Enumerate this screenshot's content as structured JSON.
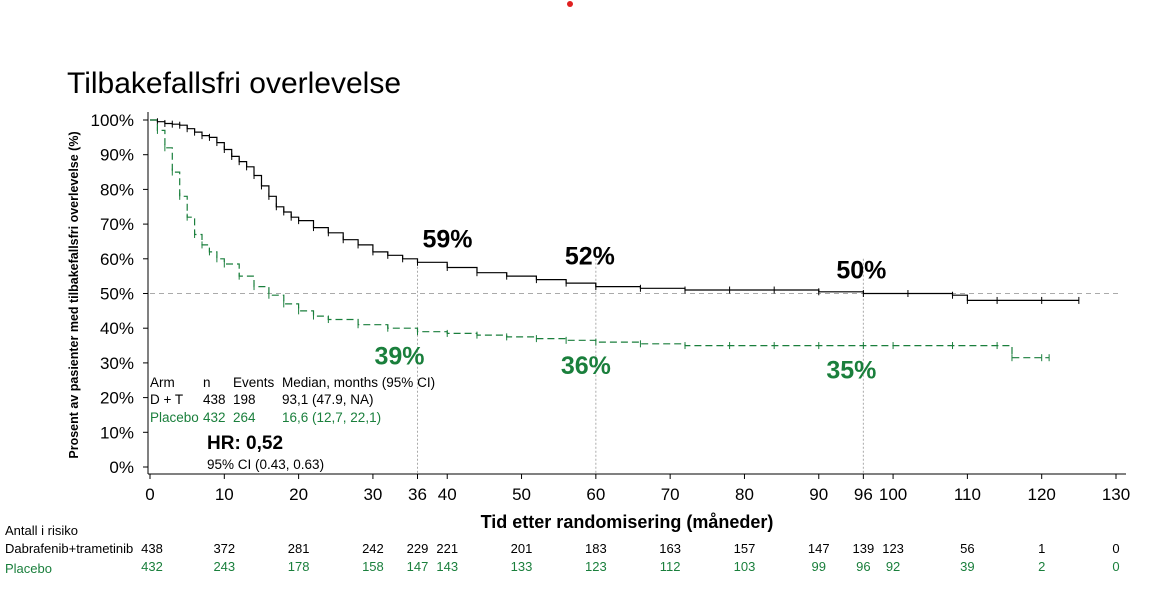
{
  "colors": {
    "dt": "#000000",
    "placebo": "#1a7f3c",
    "ref": "#aaaaaa"
  },
  "chart_data": {
    "type": "line",
    "title": "Tilbakefallsfri overlevelse",
    "xlabel": "Tid etter randomisering (måneder)",
    "ylabel": "Prosent av pasienter med tilbakefallsfri overlevelse (%)",
    "xlim": [
      0,
      130
    ],
    "ylim": [
      0,
      100
    ],
    "x_ticks": [
      0,
      10,
      20,
      30,
      36,
      40,
      50,
      60,
      70,
      80,
      90,
      96,
      100,
      110,
      120,
      130
    ],
    "y_ticks": [
      0,
      10,
      20,
      30,
      40,
      50,
      60,
      70,
      80,
      90,
      100
    ],
    "y_tick_labels": [
      "0%",
      "10%",
      "20%",
      "30%",
      "40%",
      "50%",
      "60%",
      "70%",
      "80%",
      "90%",
      "100%"
    ],
    "reference_line_y": 50,
    "reference_lines_x": [
      36,
      60,
      96
    ],
    "series": [
      {
        "name": "D + T",
        "color": "#000000",
        "style": "solid",
        "x": [
          0,
          1,
          2,
          3,
          4,
          5,
          6,
          7,
          8,
          9,
          10,
          11,
          12,
          13,
          14,
          15,
          16,
          17,
          18,
          19,
          20,
          22,
          24,
          26,
          28,
          30,
          32,
          34,
          36,
          40,
          44,
          48,
          52,
          56,
          60,
          66,
          72,
          78,
          84,
          90,
          96,
          102,
          108,
          110,
          114,
          120,
          125
        ],
        "y": [
          100,
          99.5,
          99,
          98.8,
          98.5,
          97.5,
          96.5,
          95.5,
          95,
          93.5,
          91.5,
          89.5,
          88,
          86.5,
          84,
          81,
          78,
          75,
          73.5,
          72,
          71,
          69,
          67.5,
          65.5,
          64,
          62,
          61,
          60,
          59,
          57.5,
          56,
          55,
          54,
          53,
          52,
          51.5,
          51,
          51,
          51,
          50.5,
          50,
          50,
          49.5,
          48,
          48,
          48,
          48
        ]
      },
      {
        "name": "Placebo",
        "color": "#1a7f3c",
        "style": "dashed",
        "x": [
          0,
          1,
          2,
          3,
          4,
          5,
          6,
          7,
          8,
          9,
          10,
          12,
          14,
          16,
          18,
          20,
          22,
          24,
          28,
          32,
          36,
          40,
          44,
          48,
          52,
          56,
          60,
          66,
          72,
          78,
          84,
          90,
          96,
          100,
          108,
          114,
          116,
          120,
          121
        ],
        "y": [
          100,
          97,
          92,
          85,
          78,
          72,
          67,
          64,
          62,
          60,
          58.5,
          55,
          52,
          49.5,
          47,
          45,
          43.5,
          42.5,
          41,
          40,
          39,
          38.5,
          38,
          37.5,
          37,
          36.5,
          36,
          35.5,
          35,
          35,
          35,
          35,
          35,
          35,
          35,
          35,
          31.5,
          31.5,
          31.5
        ]
      }
    ],
    "annotations": [
      {
        "text": "59%",
        "x": 36,
        "y": 59,
        "series": "D + T"
      },
      {
        "text": "52%",
        "x": 60,
        "y": 52,
        "series": "D + T"
      },
      {
        "text": "50%",
        "x": 96,
        "y": 50,
        "series": "D + T"
      },
      {
        "text": "39%",
        "x": 36,
        "y": 39,
        "series": "Placebo"
      },
      {
        "text": "36%",
        "x": 60,
        "y": 36,
        "series": "Placebo"
      },
      {
        "text": "35%",
        "x": 96,
        "y": 35,
        "series": "Placebo"
      }
    ]
  },
  "legend_table": {
    "headers": [
      "Arm",
      "n",
      "Events",
      "Median, months (95% CI)"
    ],
    "rows": [
      {
        "arm": "D + T",
        "n": "438",
        "events": "198",
        "median": "93,1 (47.9, NA)"
      },
      {
        "arm": "Placebo",
        "n": "432",
        "events": "264",
        "median": "16,6 (12,7, 22,1)"
      }
    ]
  },
  "hazard_ratio": {
    "label": "HR: 0,52",
    "ci": "95% CI (0.43, 0.63)"
  },
  "risk_table": {
    "title": "Antall i risiko",
    "times": [
      0,
      10,
      20,
      30,
      36,
      40,
      50,
      60,
      70,
      80,
      90,
      96,
      100,
      110,
      120,
      130
    ],
    "rows": [
      {
        "label": "Dabrafenib+trametinib",
        "values": [
          "438",
          "372",
          "281",
          "242",
          "229",
          "221",
          "201",
          "183",
          "163",
          "157",
          "147",
          "139",
          "123",
          "56",
          "1",
          "0"
        ]
      },
      {
        "label": "Placebo",
        "values": [
          "432",
          "243",
          "178",
          "158",
          "147",
          "143",
          "133",
          "123",
          "112",
          "103",
          "99",
          "96",
          "92",
          "39",
          "2",
          "0"
        ]
      }
    ]
  }
}
